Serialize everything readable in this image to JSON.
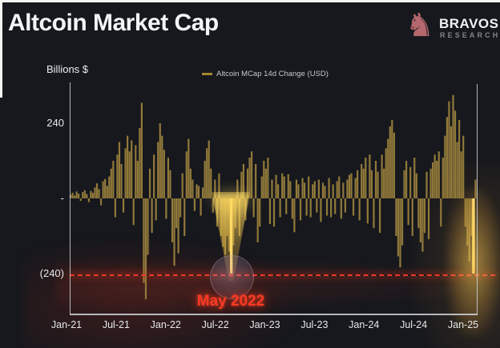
{
  "header": {
    "title": "Altcoin Market Cap"
  },
  "brand": {
    "name": "BRAVOS",
    "subtitle": "RESEARCH",
    "logo_glyph": "♞",
    "color": "#b4686d"
  },
  "chart_data": {
    "type": "bar",
    "title": "Altcoin Market Cap",
    "ylabel": "Billions $",
    "series_name": "Altcoin MCap 14d Change (USD)",
    "legend_position": "top-center",
    "grid": false,
    "x_labels": [
      "Jan-21",
      "Jul-21",
      "Jan-22",
      "Jul-22",
      "Jan-23",
      "Jul-23",
      "Jan-24",
      "Jul-24",
      "Jan-25"
    ],
    "ytick_labels": [
      "240",
      "-",
      "(240)"
    ],
    "ytick_values": [
      240,
      0,
      -240
    ],
    "ylim": [
      -375,
      375
    ],
    "ref_line": {
      "value": -240,
      "style": "dashed",
      "color": "#e8392b"
    },
    "annotations": [
      {
        "text": "May 2022",
        "index": 79,
        "value": -240
      }
    ],
    "highlight_indices": [
      79,
      198
    ],
    "colors": {
      "bar": "#91793a",
      "highlight": "#ffdf74",
      "accent_red": "#f23a28"
    },
    "values": [
      12,
      18,
      9,
      22,
      15,
      -8,
      20,
      26,
      14,
      -12,
      24,
      18,
      35,
      48,
      30,
      -22,
      55,
      62,
      40,
      70,
      95,
      120,
      -60,
      140,
      180,
      110,
      -45,
      160,
      200,
      150,
      185,
      -85,
      170,
      120,
      225,
      305,
      -270,
      -322,
      -180,
      95,
      -110,
      140,
      -70,
      180,
      240,
      200,
      155,
      -65,
      130,
      90,
      -140,
      -215,
      -95,
      -175,
      -60,
      80,
      -120,
      150,
      190,
      95,
      60,
      -40,
      45,
      40,
      -55,
      35,
      120,
      160,
      185,
      95,
      -45,
      60,
      -90,
      80,
      -120,
      -155,
      -180,
      -120,
      -170,
      -240,
      -150,
      -95,
      60,
      -120,
      85,
      110,
      -70,
      95,
      130,
      150,
      -60,
      110,
      -140,
      -90,
      70,
      120,
      95,
      130,
      -82,
      60,
      -90,
      75,
      45,
      -60,
      80,
      70,
      -50,
      77,
      55,
      -65,
      -108,
      60,
      45,
      -70,
      65,
      50,
      -55,
      70,
      -60,
      45,
      55,
      -45,
      60,
      -75,
      50,
      40,
      -55,
      65,
      -60,
      45,
      -50,
      55,
      70,
      -65,
      50,
      -45,
      60,
      75,
      80,
      -55,
      65,
      90,
      -70,
      110,
      95,
      130,
      -80,
      140,
      90,
      -95,
      120,
      85,
      -110,
      140,
      95,
      160,
      190,
      230,
      250,
      210,
      -120,
      -185,
      -220,
      -150,
      90,
      120,
      -85,
      100,
      -120,
      130,
      80,
      -95,
      -140,
      -170,
      -110,
      85,
      -130,
      95,
      115,
      140,
      120,
      150,
      -90,
      130,
      200,
      260,
      310,
      230,
      330,
      280,
      180,
      250,
      150,
      200,
      -90,
      -150,
      -200,
      -120,
      -240,
      60
    ]
  }
}
